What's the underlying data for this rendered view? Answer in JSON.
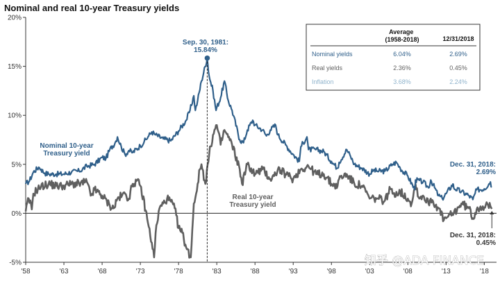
{
  "colors": {
    "nominal": "#2f5f8a",
    "real": "#5f5f5f",
    "inflation": "#8fb3cc",
    "axis": "#333333",
    "peak_dot": "#2f5f8a"
  },
  "watermark": "知乎 @ADA FINANCE",
  "chart_data": {
    "type": "line",
    "title": "Nominal and real 10-year Treasury yields",
    "xlabel": "",
    "ylabel": "",
    "xlim": [
      1958,
      2019.6
    ],
    "ylim": [
      -5,
      20
    ],
    "y_ticks": [
      "-5%",
      "0%",
      "5%",
      "10%",
      "15%",
      "20%"
    ],
    "y_tick_values": [
      -5,
      0,
      5,
      10,
      15,
      20
    ],
    "x_ticks": [
      "'58",
      "'63",
      "'68",
      "'73",
      "'78",
      "'83",
      "'88",
      "'93",
      "'98",
      "'03",
      "'08",
      "'13",
      "'18"
    ],
    "x_tick_values": [
      1958,
      1963,
      1968,
      1973,
      1978,
      1983,
      1988,
      1993,
      1998,
      2003,
      2008,
      2013,
      2018
    ],
    "grid": false,
    "series": [
      {
        "name": "Nominal 10-year Treasury yield",
        "x": [
          1958,
          1958.5,
          1959,
          1959.7,
          1960,
          1960.5,
          1961,
          1962,
          1963,
          1964,
          1965,
          1966,
          1967,
          1968,
          1968.5,
          1969,
          1969.7,
          1970,
          1970.5,
          1971,
          1971.5,
          1972,
          1973,
          1973.5,
          1974,
          1974.5,
          1975,
          1976,
          1977,
          1978,
          1979,
          1979.5,
          1980,
          1980.2,
          1980.5,
          1981,
          1981.75,
          1982,
          1982.5,
          1982.9,
          1983,
          1983.5,
          1984,
          1984.5,
          1985,
          1986,
          1986.5,
          1987,
          1987.7,
          1988,
          1989,
          1989.5,
          1990,
          1990.7,
          1991,
          1992,
          1993,
          1993.8,
          1994,
          1994.8,
          1995,
          1996,
          1997,
          1998,
          1998.8,
          1999,
          2000,
          2000.5,
          2001,
          2002,
          2003,
          2003.5,
          2004,
          2005,
          2006,
          2006.5,
          2007,
          2008,
          2008.9,
          2009,
          2010,
          2010.7,
          2011,
          2012,
          2012.5,
          2013,
          2013.9,
          2014,
          2015,
          2016,
          2016.5,
          2017,
          2018,
          2018.8,
          2018.99
        ],
        "values": [
          3.0,
          3.3,
          4.2,
          4.7,
          4.5,
          4.1,
          4.0,
          4.0,
          4.0,
          4.2,
          4.3,
          4.8,
          5.0,
          5.7,
          5.6,
          6.5,
          7.2,
          7.8,
          6.8,
          6.0,
          6.4,
          6.2,
          6.9,
          7.3,
          7.8,
          8.3,
          8.0,
          7.6,
          7.4,
          8.4,
          9.5,
          10.5,
          12.0,
          10.5,
          11.5,
          13.5,
          15.84,
          14.0,
          12.5,
          10.5,
          10.8,
          11.8,
          13.5,
          11.5,
          10.5,
          7.5,
          7.2,
          8.5,
          9.5,
          9.0,
          8.5,
          7.9,
          8.5,
          9.0,
          8.0,
          7.0,
          6.0,
          5.3,
          6.8,
          7.8,
          6.5,
          6.5,
          6.3,
          5.3,
          4.6,
          5.2,
          6.5,
          5.8,
          5.0,
          4.6,
          4.0,
          4.4,
          4.3,
          4.3,
          5.0,
          5.2,
          4.6,
          3.8,
          2.4,
          3.4,
          3.2,
          2.6,
          3.4,
          1.8,
          1.5,
          2.0,
          3.0,
          2.6,
          2.2,
          1.8,
          1.4,
          2.4,
          2.5,
          3.2,
          2.69
        ]
      },
      {
        "name": "Real 10-year Treasury yield",
        "x": [
          1958,
          1958.4,
          1958.8,
          1959,
          1959.6,
          1960,
          1961,
          1962,
          1963,
          1964,
          1965,
          1966,
          1966.5,
          1967,
          1968,
          1969,
          1969.5,
          1970,
          1970.6,
          1971,
          1971.5,
          1972,
          1972.5,
          1973,
          1973.7,
          1974,
          1974.5,
          1974.8,
          1975,
          1975.5,
          1976,
          1976.5,
          1977,
          1977.5,
          1978,
          1978.5,
          1979,
          1979.6,
          1980,
          1980.3,
          1980.5,
          1980.8,
          1981,
          1981.5,
          1982,
          1982.5,
          1983,
          1983.5,
          1984,
          1985,
          1986,
          1986.3,
          1987,
          1988,
          1989,
          1990,
          1990.5,
          1991,
          1992,
          1993,
          1994,
          1995,
          1996,
          1997,
          1998,
          1998.8,
          1999,
          2000,
          2001,
          2002,
          2003,
          2004,
          2005,
          2005.7,
          2006,
          2007,
          2008,
          2008.5,
          2009,
          2009.5,
          2010,
          2010.7,
          2011,
          2012,
          2012.7,
          2013,
          2014,
          2015,
          2016,
          2016.5,
          2017,
          2017.5,
          2018,
          2018.5,
          2018.99
        ],
        "values": [
          0.2,
          1.5,
          0.4,
          2.0,
          2.5,
          2.7,
          3.0,
          2.8,
          2.8,
          3.0,
          3.0,
          3.2,
          1.8,
          2.4,
          1.8,
          0.8,
          0.5,
          1.5,
          1.8,
          2.0,
          1.5,
          3.0,
          3.3,
          2.8,
          0.3,
          -1.0,
          -3.0,
          -4.5,
          -2.0,
          0.5,
          1.0,
          1.5,
          1.2,
          0.5,
          -1.5,
          -2.0,
          -3.5,
          -4.5,
          1.0,
          2.0,
          3.0,
          4.5,
          5.0,
          3.0,
          6.0,
          8.0,
          9.0,
          7.0,
          8.5,
          7.0,
          4.5,
          3.0,
          5.0,
          4.0,
          4.5,
          3.5,
          3.8,
          4.5,
          4.0,
          3.5,
          4.5,
          4.8,
          4.0,
          4.0,
          3.0,
          2.8,
          3.5,
          4.0,
          3.0,
          2.8,
          1.5,
          1.5,
          1.3,
          2.5,
          2.0,
          2.2,
          1.5,
          1.0,
          3.0,
          1.5,
          1.8,
          1.0,
          1.5,
          0.5,
          -0.7,
          -0.5,
          0.0,
          1.0,
          0.5,
          -0.5,
          0.4,
          0.7,
          0.6,
          0.8,
          0.45
        ]
      }
    ],
    "annotations": {
      "peak_label": [
        "Sep. 30, 1981:",
        "15.84%"
      ],
      "peak": {
        "x": 1981.75,
        "y": 15.84
      },
      "nominal_label": [
        "Nominal 10-year",
        "Treasury yield"
      ],
      "real_label": [
        "Real 10-year",
        "Treasury yield"
      ],
      "nominal_end": [
        "Dec. 31, 2018:",
        "2.69%"
      ],
      "real_end": [
        "Dec. 31, 2018:",
        "0.45%"
      ],
      "real_end_point": {
        "x": 2018.99,
        "y": 0.45
      }
    },
    "table": {
      "header": [
        "",
        "Average\n(1958-2018)",
        "12/31/2018"
      ],
      "rows": [
        {
          "label": "Nominal yields",
          "average": "6.04%",
          "end": "2.69%",
          "color": "#2f5f8a"
        },
        {
          "label": "Real yields",
          "average": "2.36%",
          "end": "0.45%",
          "color": "#5f5f5f"
        },
        {
          "label": "Inflation",
          "average": "3.68%",
          "end": "2.24%",
          "color": "#8fb3cc"
        }
      ]
    }
  }
}
